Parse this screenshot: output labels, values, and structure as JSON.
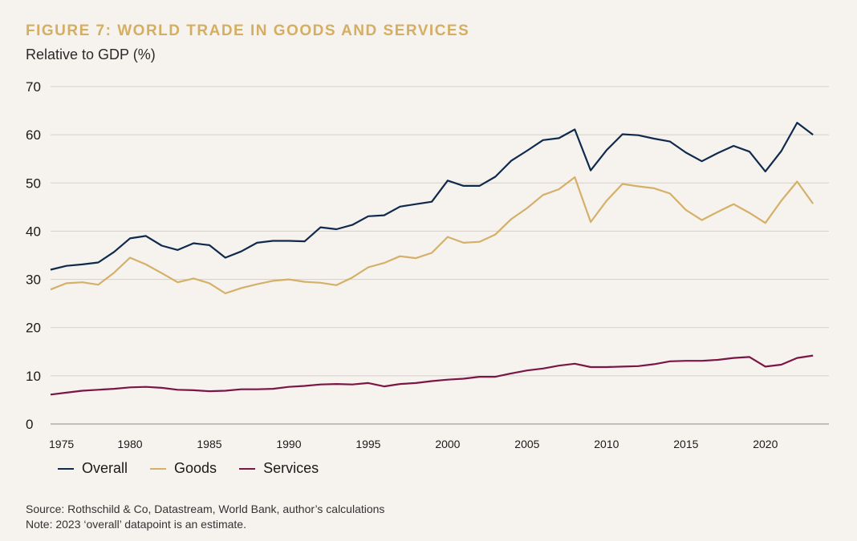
{
  "header": {
    "title": "FIGURE 7: WORLD TRADE IN GOODS AND SERVICES",
    "subtitle": "Relative to GDP (%)"
  },
  "footer": {
    "source": "Source: Rothschild & Co, Datastream, World Bank, author’s calculations",
    "note": "Note: 2023 ‘overall’ datapoint is an estimate."
  },
  "chart_data": {
    "type": "line",
    "title": "FIGURE 7: WORLD TRADE IN GOODS AND SERVICES",
    "ylabel": "Relative to GDP (%)",
    "xlabel": "",
    "ylim": [
      0,
      70
    ],
    "xlim": [
      1975,
      2024
    ],
    "yticks": [
      0,
      10,
      20,
      30,
      40,
      50,
      60,
      70
    ],
    "xticks": [
      1975,
      1980,
      1985,
      1990,
      1995,
      2000,
      2005,
      2010,
      2015,
      2020
    ],
    "grid": true,
    "legend": "bottom-left",
    "x": [
      1975,
      1976,
      1977,
      1978,
      1979,
      1980,
      1981,
      1982,
      1983,
      1984,
      1985,
      1986,
      1987,
      1988,
      1989,
      1990,
      1991,
      1992,
      1993,
      1994,
      1995,
      1996,
      1997,
      1998,
      1999,
      2000,
      2001,
      2002,
      2003,
      2004,
      2005,
      2006,
      2007,
      2008,
      2009,
      2010,
      2011,
      2012,
      2013,
      2014,
      2015,
      2016,
      2017,
      2018,
      2019,
      2020,
      2021,
      2022,
      2023
    ],
    "series": [
      {
        "name": "Overall",
        "color": "#0f2a4d",
        "values": [
          32.0,
          32.8,
          33.1,
          33.5,
          35.7,
          38.5,
          39.0,
          37.0,
          36.1,
          37.5,
          37.1,
          34.5,
          35.8,
          37.6,
          38.0,
          38.0,
          37.9,
          40.8,
          40.4,
          41.3,
          43.1,
          43.3,
          45.1,
          45.6,
          46.1,
          50.5,
          49.4,
          49.4,
          51.3,
          54.6,
          56.7,
          58.9,
          59.3,
          61.1,
          52.6,
          56.8,
          60.1,
          59.9,
          59.2,
          58.6,
          56.3,
          54.5,
          56.2,
          57.7,
          56.5,
          52.4,
          56.6,
          62.5,
          60.0
        ]
      },
      {
        "name": "Goods",
        "color": "#d4b068",
        "values": [
          27.9,
          29.2,
          29.4,
          28.9,
          31.4,
          34.5,
          33.1,
          31.3,
          29.4,
          30.2,
          29.2,
          27.1,
          28.2,
          29.0,
          29.7,
          30.0,
          29.5,
          29.3,
          28.8,
          30.4,
          32.5,
          33.4,
          34.8,
          34.4,
          35.5,
          38.8,
          37.6,
          37.8,
          39.3,
          42.5,
          44.8,
          47.5,
          48.7,
          51.2,
          41.9,
          46.3,
          49.8,
          49.3,
          48.9,
          47.8,
          44.4,
          42.3,
          44.0,
          45.6,
          43.8,
          41.7,
          46.3,
          50.3,
          45.7
        ]
      },
      {
        "name": "Services",
        "color": "#7a1545",
        "values": [
          6.1,
          6.5,
          6.9,
          7.1,
          7.3,
          7.6,
          7.7,
          7.5,
          7.1,
          7.0,
          6.8,
          6.9,
          7.2,
          7.2,
          7.3,
          7.7,
          7.9,
          8.2,
          8.3,
          8.2,
          8.5,
          7.8,
          8.3,
          8.5,
          8.9,
          9.2,
          9.4,
          9.8,
          9.8,
          10.5,
          11.1,
          11.5,
          12.1,
          12.5,
          11.8,
          11.8,
          11.9,
          12.0,
          12.4,
          13.0,
          13.1,
          13.1,
          13.3,
          13.7,
          13.9,
          11.9,
          12.3,
          13.7,
          14.2
        ]
      }
    ]
  }
}
